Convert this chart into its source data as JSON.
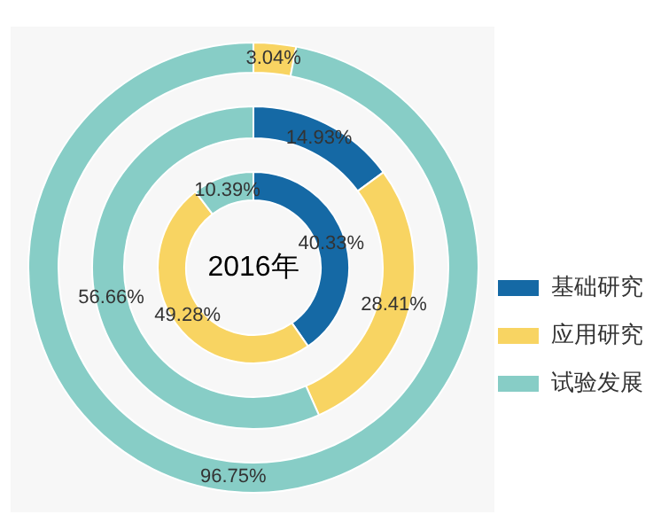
{
  "chart_data": {
    "type": "donut",
    "title": "2016年",
    "categories": [
      "基础研究",
      "应用研究",
      "试验发展"
    ],
    "colors": [
      "#1569a5",
      "#f8d462",
      "#87cdc6"
    ],
    "legend": "right",
    "series": [
      {
        "values": [
          null,
          3.04,
          96.75
        ],
        "value_labels": [
          null,
          "3.04%",
          "96.75%"
        ]
      },
      {
        "values": [
          14.93,
          28.41,
          56.66
        ],
        "value_labels": [
          "14.93%",
          "28.41%",
          "56.66%"
        ]
      },
      {
        "values": [
          40.33,
          49.28,
          10.39
        ],
        "value_labels": [
          "40.33%",
          "49.28%",
          "10.39%"
        ]
      }
    ]
  }
}
